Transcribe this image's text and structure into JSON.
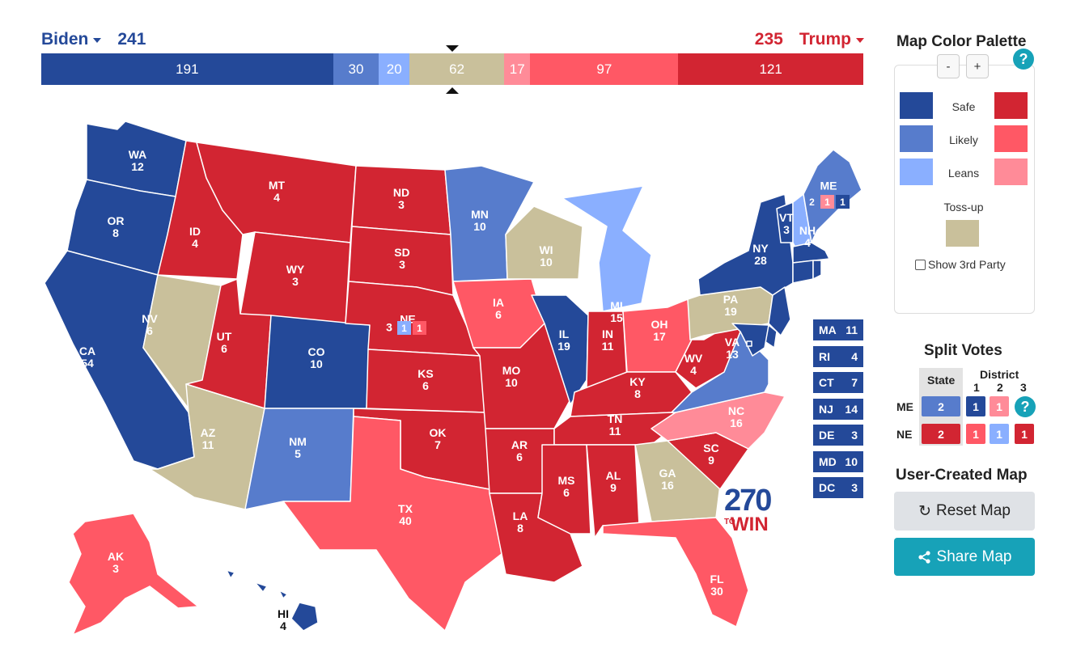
{
  "header": {
    "left": {
      "name": "Biden",
      "total": "241",
      "color": "#244999"
    },
    "right": {
      "name": "Trump",
      "total": "235",
      "color": "#d22532"
    }
  },
  "scorebar": [
    {
      "value": 191,
      "label": "191",
      "color": "#244999"
    },
    {
      "value": 30,
      "label": "30",
      "color": "#577ccc"
    },
    {
      "value": 20,
      "label": "20",
      "color": "#8aafff"
    },
    {
      "value": 62,
      "label": "62",
      "color": "#c9c09b"
    },
    {
      "value": 17,
      "label": "17",
      "color": "#ff8b98"
    },
    {
      "value": 97,
      "label": "97",
      "color": "#ff5865"
    },
    {
      "value": 121,
      "label": "121",
      "color": "#d22532"
    }
  ],
  "colors": {
    "safe_d": "#244999",
    "likely_d": "#577ccc",
    "leans_d": "#8aafff",
    "tossup": "#c9c09b",
    "leans_r": "#ff8b98",
    "likely_r": "#ff5865",
    "safe_r": "#d22532"
  },
  "states": [
    {
      "abbr": "WA",
      "ev": "12",
      "rating": "safe_d"
    },
    {
      "abbr": "OR",
      "ev": "8",
      "rating": "safe_d"
    },
    {
      "abbr": "CA",
      "ev": "54",
      "rating": "safe_d"
    },
    {
      "abbr": "NV",
      "ev": "6",
      "rating": "tossup"
    },
    {
      "abbr": "ID",
      "ev": "4",
      "rating": "safe_r"
    },
    {
      "abbr": "MT",
      "ev": "4",
      "rating": "safe_r"
    },
    {
      "abbr": "WY",
      "ev": "3",
      "rating": "safe_r"
    },
    {
      "abbr": "UT",
      "ev": "6",
      "rating": "safe_r"
    },
    {
      "abbr": "AZ",
      "ev": "11",
      "rating": "tossup"
    },
    {
      "abbr": "CO",
      "ev": "10",
      "rating": "safe_d"
    },
    {
      "abbr": "NM",
      "ev": "5",
      "rating": "likely_d"
    },
    {
      "abbr": "ND",
      "ev": "3",
      "rating": "safe_r"
    },
    {
      "abbr": "SD",
      "ev": "3",
      "rating": "safe_r"
    },
    {
      "abbr": "NE",
      "ev": "3",
      "rating": "safe_r"
    },
    {
      "abbr": "KS",
      "ev": "6",
      "rating": "safe_r"
    },
    {
      "abbr": "OK",
      "ev": "7",
      "rating": "safe_r"
    },
    {
      "abbr": "TX",
      "ev": "40",
      "rating": "likely_r"
    },
    {
      "abbr": "MN",
      "ev": "10",
      "rating": "likely_d"
    },
    {
      "abbr": "IA",
      "ev": "6",
      "rating": "likely_r"
    },
    {
      "abbr": "MO",
      "ev": "10",
      "rating": "safe_r"
    },
    {
      "abbr": "AR",
      "ev": "6",
      "rating": "safe_r"
    },
    {
      "abbr": "LA",
      "ev": "8",
      "rating": "safe_r"
    },
    {
      "abbr": "WI",
      "ev": "10",
      "rating": "tossup"
    },
    {
      "abbr": "IL",
      "ev": "19",
      "rating": "safe_d"
    },
    {
      "abbr": "MI",
      "ev": "15",
      "rating": "leans_d"
    },
    {
      "abbr": "IN",
      "ev": "11",
      "rating": "safe_r"
    },
    {
      "abbr": "OH",
      "ev": "17",
      "rating": "likely_r"
    },
    {
      "abbr": "KY",
      "ev": "8",
      "rating": "safe_r"
    },
    {
      "abbr": "TN",
      "ev": "11",
      "rating": "safe_r"
    },
    {
      "abbr": "MS",
      "ev": "6",
      "rating": "safe_r"
    },
    {
      "abbr": "AL",
      "ev": "9",
      "rating": "safe_r"
    },
    {
      "abbr": "GA",
      "ev": "16",
      "rating": "tossup"
    },
    {
      "abbr": "FL",
      "ev": "30",
      "rating": "likely_r"
    },
    {
      "abbr": "SC",
      "ev": "9",
      "rating": "safe_r"
    },
    {
      "abbr": "NC",
      "ev": "16",
      "rating": "leans_r"
    },
    {
      "abbr": "VA",
      "ev": "13",
      "rating": "likely_d"
    },
    {
      "abbr": "WV",
      "ev": "4",
      "rating": "safe_r"
    },
    {
      "abbr": "PA",
      "ev": "19",
      "rating": "tossup"
    },
    {
      "abbr": "NY",
      "ev": "28",
      "rating": "safe_d"
    },
    {
      "abbr": "VT",
      "ev": "3",
      "rating": "safe_d"
    },
    {
      "abbr": "NH",
      "ev": "4",
      "rating": "leans_d"
    },
    {
      "abbr": "ME",
      "ev": "",
      "rating": "likely_d"
    },
    {
      "abbr": "AK",
      "ev": "3",
      "rating": "likely_r"
    },
    {
      "abbr": "HI",
      "ev": "4",
      "rating": "safe_d"
    }
  ],
  "small_states": [
    {
      "abbr": "MA",
      "ev": "11"
    },
    {
      "abbr": "RI",
      "ev": "4"
    },
    {
      "abbr": "CT",
      "ev": "7"
    },
    {
      "abbr": "NJ",
      "ev": "14"
    },
    {
      "abbr": "DE",
      "ev": "3"
    },
    {
      "abbr": "MD",
      "ev": "10"
    },
    {
      "abbr": "DC",
      "ev": "3"
    }
  ],
  "map_splits": {
    "me": [
      "2",
      "1",
      "1"
    ],
    "ne": [
      "3",
      "1",
      "1"
    ]
  },
  "logo": {
    "number": "270",
    "to": "TO",
    "win": "WIN"
  },
  "palette": {
    "title": "Map Color Palette",
    "minus": "-",
    "plus": "+",
    "help": "?",
    "rows": [
      "Safe",
      "Likely",
      "Leans"
    ],
    "tossup": "Toss-up",
    "third_party": "Show 3rd Party"
  },
  "split_votes": {
    "title": "Split Votes",
    "state_header": "State",
    "district_header": "District",
    "district_numbers": [
      "1",
      "2",
      "3"
    ],
    "rows": [
      {
        "label": "ME",
        "state": "2",
        "districts": [
          "1",
          "1"
        ],
        "help": "?"
      },
      {
        "label": "NE",
        "state": "2",
        "districts": [
          "1",
          "1",
          "1"
        ]
      }
    ]
  },
  "user_map": {
    "title": "User-Created Map",
    "reset": "Reset Map",
    "share": "Share Map"
  }
}
